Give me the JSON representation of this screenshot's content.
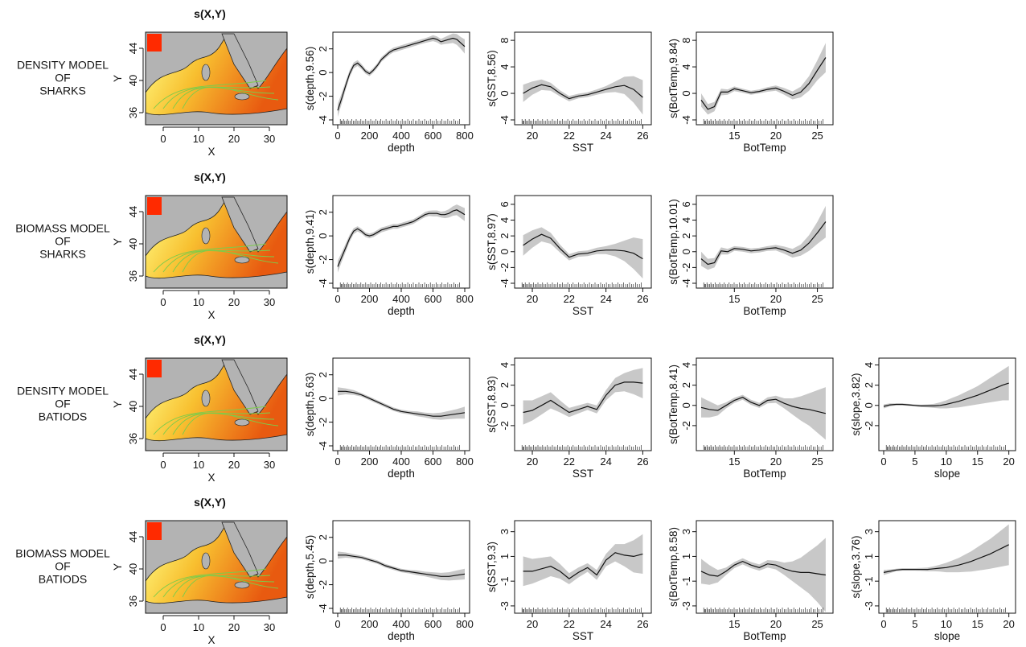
{
  "figure": {
    "rows": [
      {
        "label_lines": [
          "DENSITY MODEL",
          "OF",
          "SHARKS"
        ],
        "map": {
          "title": "s(X,Y)",
          "xlabel": "X",
          "ylabel": "Y",
          "xticks": [
            0,
            10,
            20,
            30
          ],
          "yticks": [
            36,
            40,
            44
          ]
        }
      },
      {
        "label_lines": [
          "BIOMASS MODEL",
          "OF",
          "SHARKS"
        ],
        "map": {
          "title": "s(X,Y)",
          "xlabel": "X",
          "ylabel": "Y",
          "xticks": [
            0,
            10,
            20,
            30
          ],
          "yticks": [
            36,
            40,
            44
          ]
        }
      },
      {
        "label_lines": [
          "DENSITY MODEL",
          "OF",
          "BATIODS"
        ],
        "map": {
          "title": "s(X,Y)",
          "xlabel": "X",
          "ylabel": "Y",
          "xticks": [
            0,
            10,
            20,
            30
          ],
          "yticks": [
            36,
            40,
            44
          ]
        }
      },
      {
        "label_lines": [
          "BIOMASS MODEL",
          "OF",
          "BATIODS"
        ],
        "map": {
          "title": "s(X,Y)",
          "xlabel": "X",
          "ylabel": "Y",
          "xticks": [
            0,
            10,
            20,
            30
          ],
          "yticks": [
            36,
            40,
            44
          ]
        }
      }
    ]
  },
  "colors": {
    "line": "#111111",
    "band": "#c8c8c8",
    "rug": "#111111",
    "map_land": "#b3b3b3",
    "map_sea_low": "#ffff88",
    "map_sea_high": "#e85a10",
    "map_contour": "#7ccc4a",
    "map_red": "#ff2a00"
  },
  "chart_data": [
    {
      "type": "line",
      "row": 0,
      "col": 1,
      "xlabel": "depth",
      "ylabel": "s(depth,9.56)",
      "xlim": [
        0,
        800
      ],
      "ylim": [
        -4,
        3
      ],
      "xticks": [
        0,
        200,
        400,
        600,
        800
      ],
      "yticks": [
        -4,
        -2,
        0,
        2
      ],
      "x": [
        0,
        25,
        50,
        75,
        100,
        125,
        150,
        175,
        200,
        225,
        250,
        275,
        300,
        325,
        350,
        375,
        400,
        425,
        450,
        475,
        500,
        525,
        550,
        575,
        600,
        625,
        650,
        675,
        700,
        725,
        750,
        775,
        800
      ],
      "y": [
        -3.2,
        -2.2,
        -1.1,
        -0.1,
        0.6,
        0.8,
        0.5,
        0.1,
        -0.1,
        0.2,
        0.6,
        1.1,
        1.4,
        1.7,
        1.9,
        2.0,
        2.1,
        2.2,
        2.3,
        2.4,
        2.5,
        2.6,
        2.7,
        2.8,
        2.9,
        2.8,
        2.6,
        2.7,
        2.8,
        2.9,
        2.8,
        2.5,
        2.2
      ],
      "se": [
        0.55,
        0.45,
        0.35,
        0.3,
        0.25,
        0.25,
        0.22,
        0.2,
        0.2,
        0.2,
        0.2,
        0.2,
        0.2,
        0.2,
        0.2,
        0.2,
        0.2,
        0.2,
        0.2,
        0.2,
        0.2,
        0.2,
        0.2,
        0.22,
        0.25,
        0.25,
        0.25,
        0.3,
        0.35,
        0.4,
        0.45,
        0.5,
        0.6
      ]
    },
    {
      "type": "line",
      "row": 0,
      "col": 2,
      "xlabel": "SST",
      "ylabel": "s(SST,8.56)",
      "xlim": [
        19.3,
        26.2
      ],
      "ylim": [
        -4,
        8.5
      ],
      "xticks": [
        20,
        22,
        24,
        26
      ],
      "yticks": [
        -4,
        0,
        4,
        8
      ],
      "x": [
        19.5,
        20,
        20.5,
        21,
        21.5,
        22,
        22.5,
        23,
        23.5,
        24,
        24.5,
        25,
        25.5,
        26
      ],
      "y": [
        0,
        0.8,
        1.3,
        1.0,
        0.0,
        -0.8,
        -0.4,
        -0.2,
        0.2,
        0.6,
        1.0,
        1.2,
        0.6,
        -0.6
      ],
      "se": [
        1.3,
        1.0,
        0.8,
        0.6,
        0.45,
        0.4,
        0.35,
        0.35,
        0.4,
        0.5,
        0.8,
        1.3,
        2.0,
        2.6
      ]
    },
    {
      "type": "line",
      "row": 0,
      "col": 3,
      "xlabel": "BotTemp",
      "ylabel": "s(BotTemp,9.84)",
      "xlim": [
        11,
        26.3
      ],
      "ylim": [
        -4,
        8.5
      ],
      "xticks": [
        15,
        20,
        25
      ],
      "yticks": [
        -4,
        0,
        4,
        8
      ],
      "x": [
        11,
        11.8,
        12.6,
        13.4,
        14.2,
        15,
        16,
        17,
        18,
        19,
        20,
        21,
        22,
        23,
        24,
        25,
        26
      ],
      "y": [
        -1.0,
        -2.4,
        -2.0,
        0.2,
        0.2,
        0.7,
        0.4,
        0.1,
        0.3,
        0.6,
        0.8,
        0.3,
        -0.3,
        0.2,
        1.5,
        3.5,
        5.4
      ],
      "se": [
        1.0,
        0.8,
        0.7,
        0.5,
        0.4,
        0.35,
        0.3,
        0.3,
        0.3,
        0.35,
        0.4,
        0.5,
        0.6,
        0.8,
        1.1,
        1.5,
        2.2
      ]
    },
    {
      "type": "line",
      "row": 1,
      "col": 1,
      "xlabel": "depth",
      "ylabel": "s(depth,9.41)",
      "xlim": [
        0,
        800
      ],
      "ylim": [
        -4,
        3
      ],
      "xticks": [
        0,
        200,
        400,
        600,
        800
      ],
      "yticks": [
        -4,
        -2,
        0,
        2
      ],
      "x": [
        0,
        25,
        50,
        75,
        100,
        125,
        150,
        175,
        200,
        225,
        250,
        275,
        300,
        325,
        350,
        375,
        400,
        425,
        450,
        475,
        500,
        525,
        550,
        575,
        600,
        625,
        650,
        675,
        700,
        725,
        750,
        775,
        800
      ],
      "y": [
        -2.6,
        -1.8,
        -1.0,
        -0.2,
        0.4,
        0.6,
        0.4,
        0.1,
        0.0,
        0.1,
        0.3,
        0.5,
        0.6,
        0.7,
        0.8,
        0.8,
        0.9,
        1.0,
        1.1,
        1.2,
        1.4,
        1.6,
        1.8,
        1.9,
        1.9,
        1.9,
        1.8,
        1.8,
        1.9,
        2.1,
        2.2,
        2.0,
        1.8
      ],
      "se": [
        0.5,
        0.4,
        0.35,
        0.3,
        0.25,
        0.22,
        0.2,
        0.2,
        0.2,
        0.2,
        0.2,
        0.2,
        0.2,
        0.2,
        0.2,
        0.2,
        0.2,
        0.2,
        0.2,
        0.2,
        0.2,
        0.2,
        0.22,
        0.22,
        0.25,
        0.25,
        0.25,
        0.3,
        0.35,
        0.4,
        0.45,
        0.5,
        0.55
      ]
    },
    {
      "type": "line",
      "row": 1,
      "col": 2,
      "xlabel": "SST",
      "ylabel": "s(SST,8.97)",
      "xlim": [
        19.3,
        26.2
      ],
      "ylim": [
        -4,
        6.5
      ],
      "xticks": [
        20,
        22,
        24,
        26
      ],
      "yticks": [
        -4,
        -2,
        0,
        2,
        4,
        6
      ],
      "x": [
        19.5,
        20,
        20.5,
        21,
        21.5,
        22,
        22.5,
        23,
        23.5,
        24,
        24.5,
        25,
        25.5,
        26
      ],
      "y": [
        0.8,
        1.6,
        2.2,
        1.7,
        0.4,
        -0.7,
        -0.3,
        -0.2,
        0.1,
        0.2,
        0.2,
        0.1,
        -0.2,
        -0.9
      ],
      "se": [
        1.3,
        1.1,
        0.9,
        0.7,
        0.5,
        0.4,
        0.35,
        0.35,
        0.4,
        0.5,
        0.8,
        1.3,
        2.0,
        2.5
      ]
    },
    {
      "type": "line",
      "row": 1,
      "col": 3,
      "xlabel": "BotTemp",
      "ylabel": "s(BotTemp,10.01)",
      "xlim": [
        11,
        26.3
      ],
      "ylim": [
        -4,
        6.5
      ],
      "xticks": [
        15,
        20,
        25
      ],
      "yticks": [
        -4,
        -2,
        0,
        2,
        4,
        6
      ],
      "x": [
        11,
        11.8,
        12.6,
        13.4,
        14.2,
        15,
        16,
        17,
        18,
        19,
        20,
        21,
        22,
        23,
        24,
        25,
        26
      ],
      "y": [
        -0.9,
        -1.6,
        -1.4,
        0.1,
        0.0,
        0.4,
        0.3,
        0.1,
        0.2,
        0.4,
        0.5,
        0.2,
        -0.2,
        0.2,
        1.1,
        2.4,
        3.8
      ],
      "se": [
        0.9,
        0.7,
        0.6,
        0.45,
        0.35,
        0.3,
        0.3,
        0.3,
        0.3,
        0.3,
        0.35,
        0.45,
        0.55,
        0.7,
        1.0,
        1.4,
        2.0
      ]
    },
    {
      "type": "line",
      "row": 2,
      "col": 1,
      "xlabel": "depth",
      "ylabel": "s(depth,5.63)",
      "xlim": [
        0,
        800
      ],
      "ylim": [
        -4,
        3
      ],
      "xticks": [
        0,
        200,
        400,
        600,
        800
      ],
      "yticks": [
        -4,
        -2,
        0,
        2
      ],
      "x": [
        0,
        50,
        100,
        150,
        200,
        250,
        300,
        350,
        400,
        450,
        500,
        550,
        600,
        650,
        700,
        750,
        800
      ],
      "y": [
        0.6,
        0.6,
        0.5,
        0.3,
        0.0,
        -0.3,
        -0.6,
        -0.9,
        -1.1,
        -1.2,
        -1.3,
        -1.4,
        -1.5,
        -1.5,
        -1.4,
        -1.3,
        -1.2
      ],
      "se": [
        0.35,
        0.25,
        0.2,
        0.15,
        0.15,
        0.15,
        0.15,
        0.15,
        0.15,
        0.15,
        0.2,
        0.2,
        0.25,
        0.3,
        0.35,
        0.4,
        0.5
      ]
    },
    {
      "type": "line",
      "row": 2,
      "col": 2,
      "xlabel": "SST",
      "ylabel": "s(SST,8.93)",
      "xlim": [
        19.3,
        26.2
      ],
      "ylim": [
        -4,
        4.2
      ],
      "xticks": [
        20,
        22,
        24,
        26
      ],
      "yticks": [
        -2,
        0,
        2,
        4
      ],
      "x": [
        19.5,
        20,
        20.5,
        21,
        21.5,
        22,
        22.5,
        23,
        23.5,
        24,
        24.5,
        25,
        25.5,
        26
      ],
      "y": [
        -0.7,
        -0.5,
        0.0,
        0.5,
        -0.1,
        -0.7,
        -0.4,
        -0.1,
        -0.4,
        1.0,
        2.0,
        2.3,
        2.3,
        2.2
      ],
      "se": [
        1.2,
        1.0,
        0.9,
        0.8,
        0.6,
        0.45,
        0.4,
        0.35,
        0.4,
        0.5,
        0.7,
        0.9,
        1.2,
        1.5
      ]
    },
    {
      "type": "line",
      "row": 2,
      "col": 3,
      "xlabel": "BotTemp",
      "ylabel": "s(BotTemp,8.41)",
      "xlim": [
        11,
        26.3
      ],
      "ylim": [
        -4,
        4.2
      ],
      "xticks": [
        15,
        20,
        25
      ],
      "yticks": [
        -2,
        0,
        2,
        4
      ],
      "x": [
        11,
        12,
        13,
        14,
        15,
        16,
        17,
        18,
        19,
        20,
        21,
        22,
        23,
        24,
        25,
        26
      ],
      "y": [
        -0.2,
        -0.4,
        -0.5,
        0.0,
        0.5,
        0.8,
        0.3,
        0.0,
        0.5,
        0.6,
        0.2,
        -0.1,
        -0.3,
        -0.4,
        -0.6,
        -0.8
      ],
      "se": [
        1.0,
        0.8,
        0.5,
        0.3,
        0.25,
        0.25,
        0.25,
        0.25,
        0.3,
        0.35,
        0.5,
        0.8,
        1.2,
        1.6,
        2.1,
        2.6
      ]
    },
    {
      "type": "line",
      "row": 2,
      "col": 4,
      "xlabel": "slope",
      "ylabel": "s(slope,3.82)",
      "xlim": [
        0,
        20.3
      ],
      "ylim": [
        -4,
        4.2
      ],
      "xticks": [
        0,
        5,
        10,
        15,
        20
      ],
      "yticks": [
        -2,
        0,
        2,
        4
      ],
      "x": [
        0,
        1,
        2,
        3,
        4,
        5,
        6,
        7,
        8,
        9,
        10,
        11,
        12,
        13,
        14,
        15,
        16,
        17,
        18,
        19,
        20
      ],
      "y": [
        -0.1,
        0.05,
        0.1,
        0.1,
        0.05,
        0.0,
        -0.05,
        -0.05,
        -0.05,
        0.0,
        0.1,
        0.25,
        0.4,
        0.6,
        0.8,
        1.0,
        1.25,
        1.5,
        1.75,
        2.0,
        2.2
      ],
      "se": [
        0.2,
        0.15,
        0.1,
        0.1,
        0.1,
        0.1,
        0.12,
        0.15,
        0.2,
        0.3,
        0.4,
        0.5,
        0.6,
        0.7,
        0.8,
        0.9,
        1.05,
        1.2,
        1.35,
        1.5,
        1.7
      ]
    },
    {
      "type": "line",
      "row": 3,
      "col": 1,
      "xlabel": "depth",
      "ylabel": "s(depth,5.45)",
      "xlim": [
        0,
        800
      ],
      "ylim": [
        -4,
        3
      ],
      "xticks": [
        0,
        200,
        400,
        600,
        800
      ],
      "yticks": [
        -4,
        -2,
        0,
        2
      ],
      "x": [
        0,
        50,
        100,
        150,
        200,
        250,
        300,
        350,
        400,
        450,
        500,
        550,
        600,
        650,
        700,
        750,
        800
      ],
      "y": [
        0.5,
        0.5,
        0.4,
        0.3,
        0.1,
        -0.1,
        -0.4,
        -0.6,
        -0.8,
        -0.9,
        -1.0,
        -1.1,
        -1.2,
        -1.3,
        -1.3,
        -1.2,
        -1.1
      ],
      "se": [
        0.3,
        0.22,
        0.18,
        0.15,
        0.15,
        0.15,
        0.15,
        0.15,
        0.15,
        0.15,
        0.2,
        0.2,
        0.25,
        0.3,
        0.35,
        0.4,
        0.45
      ]
    },
    {
      "type": "line",
      "row": 3,
      "col": 2,
      "xlabel": "SST",
      "ylabel": "s(SST,9.3)",
      "xlim": [
        19.3,
        26.2
      ],
      "ylim": [
        -3.2,
        3.5
      ],
      "xticks": [
        20,
        22,
        24,
        26
      ],
      "yticks": [
        -3,
        -1,
        1,
        3
      ],
      "x": [
        19.5,
        20,
        20.5,
        21,
        21.5,
        22,
        22.5,
        23,
        23.5,
        24,
        24.5,
        25,
        25.5,
        26
      ],
      "y": [
        -0.2,
        -0.2,
        0.0,
        0.2,
        -0.2,
        -0.8,
        -0.3,
        0.1,
        -0.5,
        0.7,
        1.3,
        1.1,
        1.0,
        1.2
      ],
      "se": [
        1.2,
        1.0,
        0.9,
        0.8,
        0.6,
        0.45,
        0.4,
        0.35,
        0.4,
        0.5,
        0.7,
        0.9,
        1.3,
        1.6
      ]
    },
    {
      "type": "line",
      "row": 3,
      "col": 3,
      "xlabel": "BotTemp",
      "ylabel": "s(BotTemp,8.58)",
      "xlim": [
        11,
        26.3
      ],
      "ylim": [
        -3.2,
        3.5
      ],
      "xticks": [
        15,
        20,
        25
      ],
      "yticks": [
        -3,
        -1,
        1,
        3
      ],
      "x": [
        11,
        12,
        13,
        14,
        15,
        16,
        17,
        18,
        19,
        20,
        21,
        22,
        23,
        24,
        25,
        26
      ],
      "y": [
        -0.2,
        -0.5,
        -0.6,
        -0.2,
        0.3,
        0.6,
        0.3,
        0.1,
        0.4,
        0.3,
        0.0,
        -0.2,
        -0.3,
        -0.3,
        -0.4,
        -0.5
      ],
      "se": [
        1.0,
        0.8,
        0.5,
        0.3,
        0.25,
        0.25,
        0.25,
        0.25,
        0.3,
        0.35,
        0.5,
        0.8,
        1.2,
        1.7,
        2.3,
        3.0
      ]
    },
    {
      "type": "line",
      "row": 3,
      "col": 4,
      "xlabel": "slope",
      "ylabel": "s(slope,3.76)",
      "xlim": [
        0,
        20.3
      ],
      "ylim": [
        -3.2,
        3.5
      ],
      "xticks": [
        0,
        5,
        10,
        15,
        20
      ],
      "yticks": [
        -3,
        -1,
        1,
        3
      ],
      "x": [
        0,
        1,
        2,
        3,
        4,
        5,
        6,
        7,
        8,
        9,
        10,
        11,
        12,
        13,
        14,
        15,
        16,
        17,
        18,
        19,
        20
      ],
      "y": [
        -0.3,
        -0.2,
        -0.1,
        -0.05,
        -0.05,
        -0.05,
        -0.05,
        -0.05,
        0.0,
        0.05,
        0.1,
        0.2,
        0.3,
        0.45,
        0.6,
        0.8,
        1.0,
        1.2,
        1.45,
        1.7,
        1.95
      ],
      "se": [
        0.2,
        0.15,
        0.1,
        0.1,
        0.1,
        0.1,
        0.12,
        0.15,
        0.2,
        0.28,
        0.38,
        0.48,
        0.58,
        0.7,
        0.82,
        0.95,
        1.08,
        1.2,
        1.35,
        1.5,
        1.65
      ]
    }
  ]
}
